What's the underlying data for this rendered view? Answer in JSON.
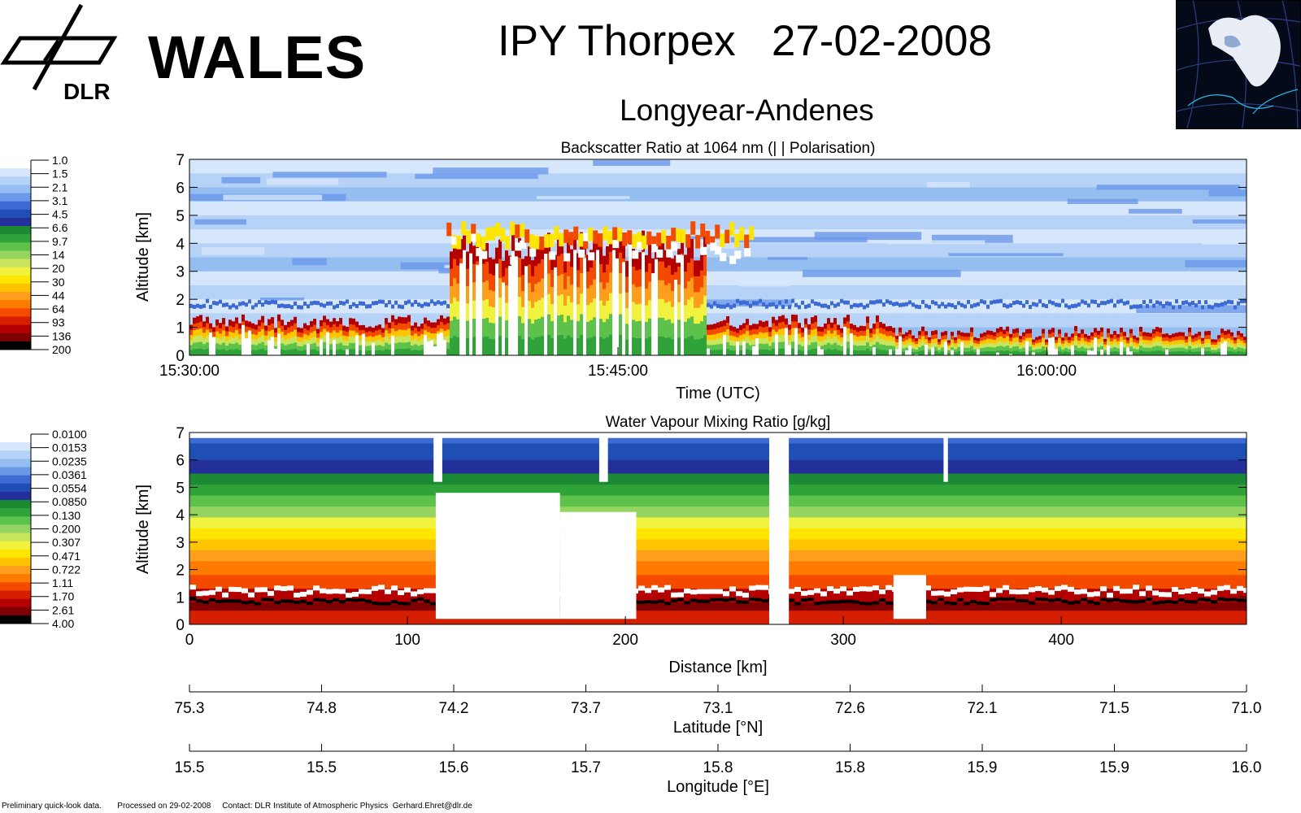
{
  "header": {
    "logo_org": "DLR",
    "brand": "WALES",
    "title": "IPY Thorpex   27-02-2008",
    "subtitle": "Longyear-Andenes"
  },
  "footer": {
    "note": "Preliminary quick-look data.       Processed on 29-02-2008     Contact: DLR Institute of Atmospheric Physics  Gerhard.Ehret@dlr.de"
  },
  "chart_data": [
    {
      "type": "heatmap",
      "title": "Backscatter Ratio at 1064 nm    (| | Polarisation)",
      "xlabel": "Time (UTC)",
      "ylabel": "Altitude [km]",
      "x_ticks": [
        "15:30:00",
        "15:45:00",
        "16:00:00"
      ],
      "xlim": [
        "15:30:00",
        "16:07:00"
      ],
      "ylim": [
        0,
        7
      ],
      "y_ticks": [
        0,
        1,
        2,
        3,
        4,
        5,
        6,
        7
      ],
      "colorbar": [
        "1.0",
        "1.5",
        "2.1",
        "3.1",
        "4.5",
        "6.6",
        "9.7",
        "14",
        "20",
        "30",
        "44",
        "64",
        "93",
        "136",
        "200"
      ],
      "colors": [
        "#ffffff",
        "#d6e6fb",
        "#b6d2f6",
        "#94bdf0",
        "#6c98ea",
        "#3d6bd6",
        "#1f4fb4",
        "#23309a",
        "#1b8a33",
        "#2fa33a",
        "#5cc24b",
        "#95d460",
        "#c8e55c",
        "#f0f23e",
        "#ffe600",
        "#ffc400",
        "#ff9d1c",
        "#ff7a00",
        "#f34a00",
        "#d61e00",
        "#b40000",
        "#7e0000",
        "#000000"
      ],
      "features": {
        "background_ratio": 1.5,
        "lower_cloud_top_km": 1.2,
        "deep_cloud_period": [
          "15:39:00",
          "15:48:00"
        ],
        "deep_cloud_top_km": 4.5,
        "high_cloud_band_km": [
          4.0,
          4.8
        ]
      }
    },
    {
      "type": "heatmap",
      "title": "Water Vapour Mixing Ratio [g/kg]",
      "xlabel": "Distance [km]",
      "ylabel": "Altitude [km]",
      "x_ticks": [
        0,
        100,
        200,
        300,
        400
      ],
      "xlim": [
        0,
        485
      ],
      "ylim": [
        0,
        7
      ],
      "y_ticks": [
        0,
        1,
        2,
        3,
        4,
        5,
        6,
        7
      ],
      "colorbar": [
        "0.0100",
        "0.0153",
        "0.0235",
        "0.0361",
        "0.0554",
        "0.0850",
        "0.130",
        "0.200",
        "0.307",
        "0.471",
        "0.722",
        "1.11",
        "1.70",
        "2.61",
        "4.00"
      ],
      "colors": [
        "#ffffff",
        "#d6e6fb",
        "#b6d2f6",
        "#94bdf0",
        "#6c98ea",
        "#3d6bd6",
        "#1f4fb4",
        "#23309a",
        "#1b8a33",
        "#2fa33a",
        "#5cc24b",
        "#95d460",
        "#c8e55c",
        "#f0f23e",
        "#ffe600",
        "#ffc400",
        "#ff9d1c",
        "#ff7a00",
        "#f34a00",
        "#d61e00",
        "#b40000",
        "#7e0000",
        "#000000"
      ],
      "features": {
        "data_gaps_km": [
          [
            112,
            116
          ],
          [
            188,
            192
          ],
          [
            266,
            275
          ],
          [
            346,
            348
          ]
        ],
        "cloud_blanks": [
          [
            113,
            170,
            0.2,
            4.8
          ],
          [
            170,
            205,
            0.2,
            4.1
          ],
          [
            272,
            275,
            0.2,
            4.8
          ],
          [
            323,
            338,
            0.2,
            1.8
          ]
        ]
      }
    }
  ],
  "latitude_axis": {
    "label": "Latitude [°N]",
    "ticks": [
      "75.3",
      "74.8",
      "74.2",
      "73.7",
      "73.1",
      "72.6",
      "72.1",
      "71.5",
      "71.0"
    ]
  },
  "longitude_axis": {
    "label": "Longitude [°E]",
    "ticks": [
      "15.5",
      "15.5",
      "15.6",
      "15.7",
      "15.8",
      "15.8",
      "15.9",
      "15.9",
      "16.0"
    ]
  }
}
